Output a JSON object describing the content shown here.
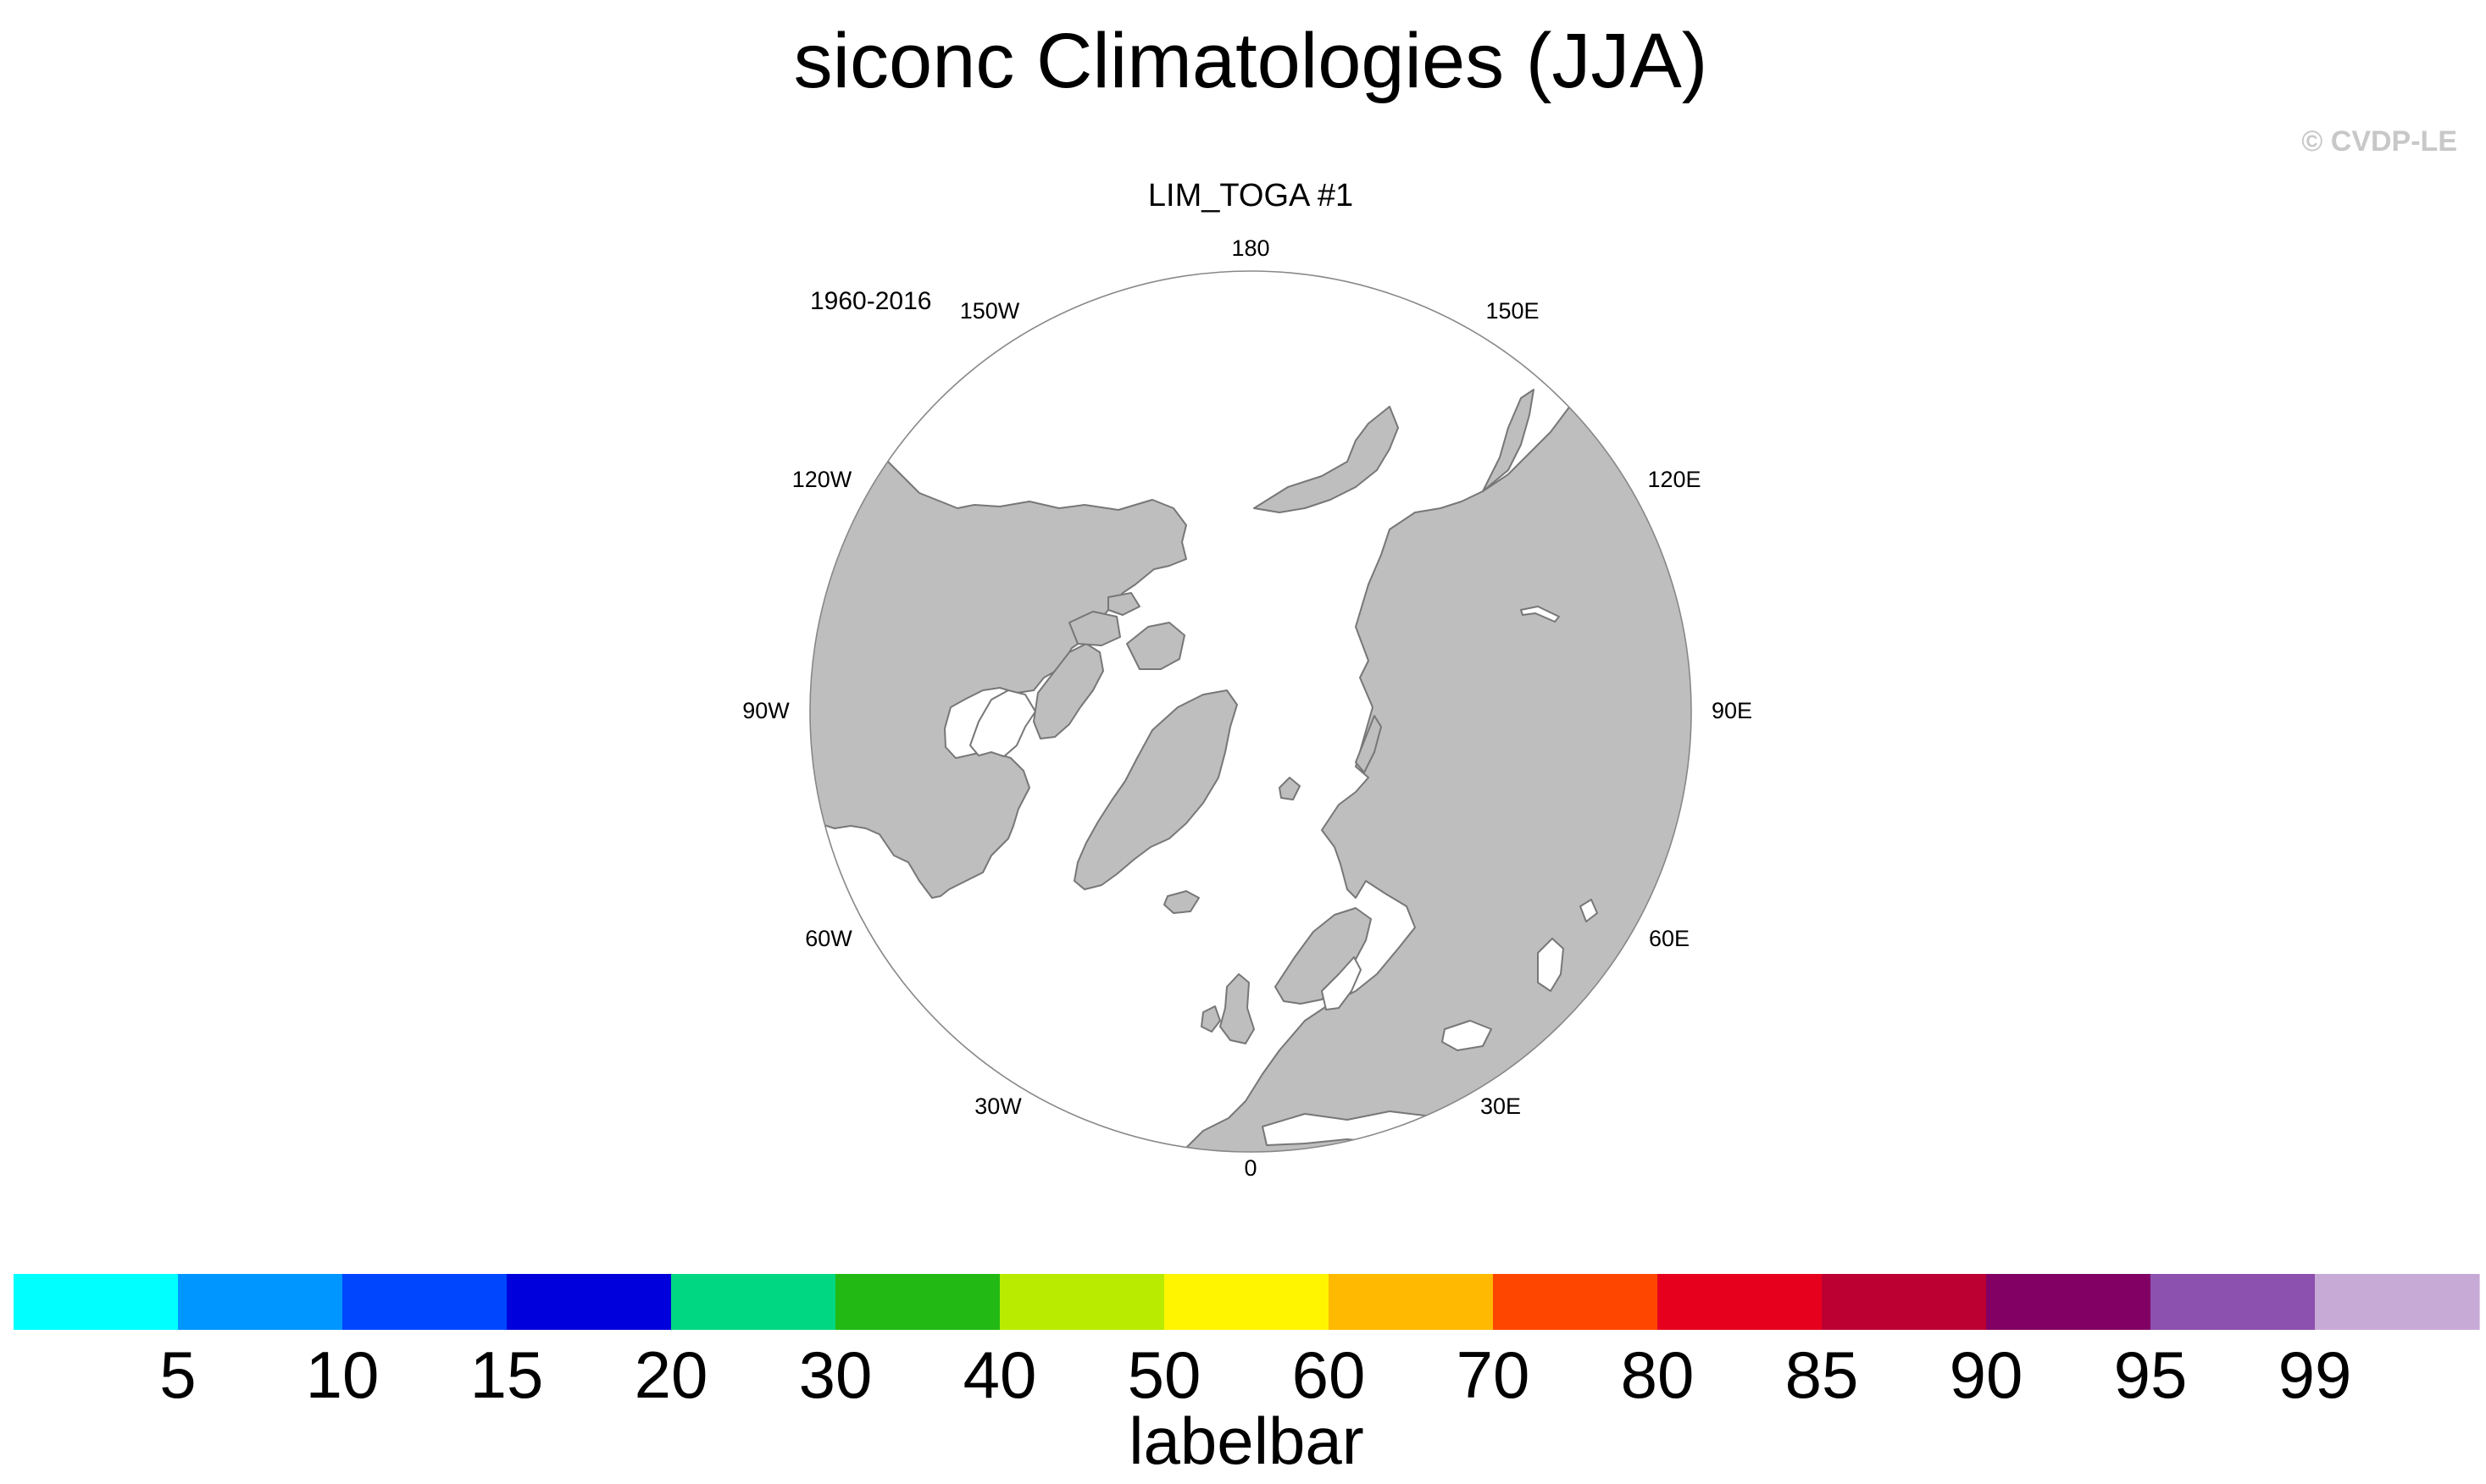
{
  "figure": {
    "title": "siconc Climatologies (JJA)",
    "credit": "© CVDP-LE",
    "panel_title": "LIM_TOGA #1",
    "period": "1960-2016"
  },
  "map": {
    "projection": "north-polar-stereographic",
    "ocean_color": "#ffffff",
    "land_color": "#bebebe",
    "coast_color": "#777777",
    "sea_ice_shading": "none visible",
    "longitude_labels": [
      {
        "lon": 180,
        "label": "180"
      },
      {
        "lon": 150,
        "label": "150E"
      },
      {
        "lon": 120,
        "label": "120E"
      },
      {
        "lon": 90,
        "label": "90E"
      },
      {
        "lon": 60,
        "label": "60E"
      },
      {
        "lon": 30,
        "label": "30E"
      },
      {
        "lon": 0,
        "label": "0"
      },
      {
        "lon": -30,
        "label": "30W"
      },
      {
        "lon": -60,
        "label": "60W"
      },
      {
        "lon": -90,
        "label": "90W"
      },
      {
        "lon": -120,
        "label": "120W"
      },
      {
        "lon": -150,
        "label": "150W"
      }
    ]
  },
  "colorbar": {
    "title": "labelbar",
    "colors": [
      "#00ffff",
      "#0096ff",
      "#0046ff",
      "#0000dc",
      "#00d782",
      "#23b914",
      "#b9eb00",
      "#fff500",
      "#ffb900",
      "#ff4600",
      "#e6001e",
      "#bc0032",
      "#820064",
      "#8c50af",
      "#c8aad7"
    ],
    "tick_labels": [
      "5",
      "10",
      "15",
      "20",
      "30",
      "40",
      "50",
      "60",
      "70",
      "80",
      "85",
      "90",
      "95",
      "99"
    ]
  }
}
